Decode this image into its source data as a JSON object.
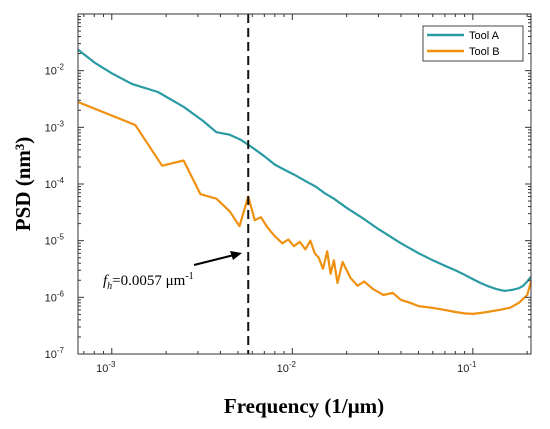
{
  "chart_data": {
    "type": "line",
    "xlabel": "Frequency (1/μm)",
    "ylabel": "PSD (nm³)",
    "xscale": "log",
    "yscale": "log",
    "xlim": [
      0.00065,
      0.21
    ],
    "ylim": [
      1e-07,
      0.1
    ],
    "grid": false,
    "legend_position": "top-right",
    "x_ticks": [
      {
        "value": 0.001,
        "base": "10",
        "exp": "-3"
      },
      {
        "value": 0.01,
        "base": "10",
        "exp": "-2"
      },
      {
        "value": 0.1,
        "base": "10",
        "exp": "-1"
      }
    ],
    "y_ticks": [
      {
        "value": 1e-07,
        "base": "10",
        "exp": "-7"
      },
      {
        "value": 1e-06,
        "base": "10",
        "exp": "-6"
      },
      {
        "value": 1e-05,
        "base": "10",
        "exp": "-5"
      },
      {
        "value": 0.0001,
        "base": "10",
        "exp": "-4"
      },
      {
        "value": 0.001,
        "base": "10",
        "exp": "-3"
      },
      {
        "value": 0.01,
        "base": "10",
        "exp": "-2"
      }
    ],
    "series": [
      {
        "name": "Tool A",
        "color": "#2a9aa3",
        "x": [
          0.00065,
          0.0008,
          0.001,
          0.0013,
          0.0018,
          0.0025,
          0.0032,
          0.0038,
          0.0045,
          0.0052,
          0.006,
          0.007,
          0.008,
          0.009,
          0.0105,
          0.012,
          0.0135,
          0.015,
          0.017,
          0.02,
          0.025,
          0.03,
          0.04,
          0.05,
          0.06,
          0.07,
          0.08,
          0.09,
          0.1,
          0.11,
          0.12,
          0.135,
          0.15,
          0.165,
          0.18,
          0.19,
          0.2,
          0.21
        ],
        "y": [
          0.0235,
          0.014,
          0.009,
          0.0058,
          0.0042,
          0.0023,
          0.0013,
          0.00082,
          0.00074,
          0.0006,
          0.00044,
          0.00031,
          0.00022,
          0.00018,
          0.00014,
          0.00011,
          9e-05,
          7e-05,
          5.5e-05,
          3.8e-05,
          2.4e-05,
          1.6e-05,
          9e-06,
          6e-06,
          4.5e-06,
          3.6e-06,
          3e-06,
          2.5e-06,
          2.1e-06,
          1.8e-06,
          1.6e-06,
          1.4e-06,
          1.3e-06,
          1.35e-06,
          1.45e-06,
          1.6e-06,
          1.9e-06,
          2.3e-06
        ]
      },
      {
        "name": "Tool B",
        "color": "#f0900f",
        "x": [
          0.00065,
          0.00135,
          0.0019,
          0.0025,
          0.0031,
          0.0038,
          0.0045,
          0.0051,
          0.0057,
          0.0062,
          0.0067,
          0.0073,
          0.008,
          0.0088,
          0.0095,
          0.0102,
          0.011,
          0.0118,
          0.0126,
          0.0133,
          0.014,
          0.0148,
          0.0156,
          0.0163,
          0.017,
          0.0178,
          0.019,
          0.021,
          0.023,
          0.025,
          0.028,
          0.032,
          0.036,
          0.04,
          0.045,
          0.05,
          0.06,
          0.07,
          0.08,
          0.09,
          0.1,
          0.11,
          0.12,
          0.14,
          0.16,
          0.18,
          0.2,
          0.21
        ],
        "y": [
          0.0028,
          0.0011,
          0.00021,
          0.00026,
          6.6e-05,
          5.5e-05,
          3.3e-05,
          1.8e-05,
          6e-05,
          2.3e-05,
          2.6e-05,
          1.7e-05,
          1.2e-05,
          9e-06,
          1.05e-05,
          8e-06,
          9.5e-06,
          7e-06,
          1e-05,
          6e-06,
          5e-06,
          3.2e-06,
          6.5e-06,
          2.6e-06,
          4.5e-06,
          1.8e-06,
          4.2e-06,
          2.2e-06,
          1.6e-06,
          1.9e-06,
          1.4e-06,
          1.1e-06,
          1.2e-06,
          9e-07,
          8e-07,
          7e-07,
          6.5e-07,
          6e-07,
          5.5e-07,
          5.2e-07,
          5.1e-07,
          5.3e-07,
          5.5e-07,
          6e-07,
          6.5e-07,
          8e-07,
          1.1e-06,
          1.9e-06
        ]
      }
    ],
    "vline_x": 0.0057,
    "annotation": {
      "symbol": "f",
      "subscript": "h",
      "text": "=0.0057 μm",
      "superscript": "-1"
    }
  }
}
